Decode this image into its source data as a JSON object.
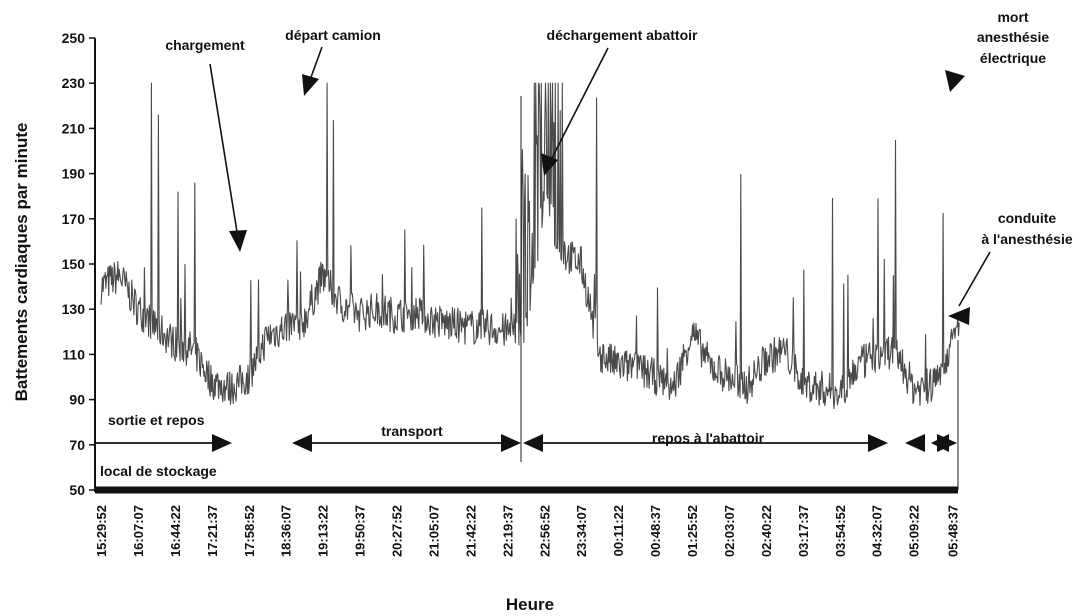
{
  "chart_data": {
    "type": "line",
    "xlabel": "Heure",
    "ylabel": "Battements cardiaques par minute",
    "ylim": [
      50,
      250
    ],
    "yticks": [
      50,
      70,
      90,
      110,
      130,
      150,
      170,
      190,
      210,
      230,
      250
    ],
    "xticks": [
      "15:29:52",
      "16:07:07",
      "16:44:22",
      "17:21:37",
      "17:58:52",
      "18:36:07",
      "19:13:22",
      "19:50:37",
      "20:27:52",
      "21:05:07",
      "21:42:22",
      "22:19:37",
      "22:56:52",
      "23:34:07",
      "00:11:22",
      "00:48:37",
      "01:25:52",
      "02:03:07",
      "02:40:22",
      "03:17:37",
      "03:54:52",
      "04:32:07",
      "05:09:22",
      "05:48:37"
    ],
    "grid": false,
    "series": [
      {
        "x": [
          "15:29:52",
          "15:48:30",
          "16:07:07",
          "16:25:45",
          "16:44:22",
          "17:03:00",
          "17:21:37",
          "17:40:15",
          "17:58:52",
          "18:17:30",
          "18:36:07",
          "18:54:45",
          "19:13:22",
          "19:32:00",
          "19:50:37",
          "20:09:15",
          "20:27:52",
          "20:46:30",
          "21:05:07",
          "21:23:45",
          "21:42:22",
          "22:01:00",
          "22:19:37",
          "22:38:15",
          "22:56:52",
          "23:15:30",
          "23:34:07",
          "23:52:45",
          "00:11:22",
          "00:30:00",
          "00:48:37",
          "01:07:15",
          "01:25:52",
          "01:44:30",
          "02:03:07",
          "02:21:45",
          "02:40:22",
          "02:59:00",
          "03:17:37",
          "03:36:15",
          "03:54:52",
          "04:13:30",
          "04:32:07",
          "04:50:45",
          "05:09:22",
          "05:28:00",
          "05:48:37",
          "05:56:00"
        ],
        "values": [
          140,
          145,
          130,
          122,
          115,
          112,
          98,
          95,
          100,
          118,
          122,
          125,
          145,
          132,
          128,
          130,
          127,
          129,
          125,
          123,
          122,
          122,
          120,
          120,
          180,
          155,
          150,
          110,
          105,
          104,
          100,
          95,
          120,
          105,
          100,
          96,
          108,
          112,
          97,
          95,
          93,
          105,
          110,
          112,
          95,
          96,
          115,
          125
        ]
      }
    ],
    "annotations": [
      {
        "text": "chargement"
      },
      {
        "text": "départ camion"
      },
      {
        "text": "déchargement abattoir"
      },
      {
        "text": "mort anesthésie électrique",
        "lines": [
          "mort",
          "anesthésie",
          "électrique"
        ]
      },
      {
        "text": "conduite à l'anesthésie",
        "lines": [
          "conduite",
          "à l'anesthésie"
        ]
      }
    ],
    "phases": [
      {
        "text": "sortie et repos"
      },
      {
        "text": "transport"
      },
      {
        "text": "repos à l'abattoir"
      },
      {
        "text": "local de stockage"
      }
    ]
  }
}
